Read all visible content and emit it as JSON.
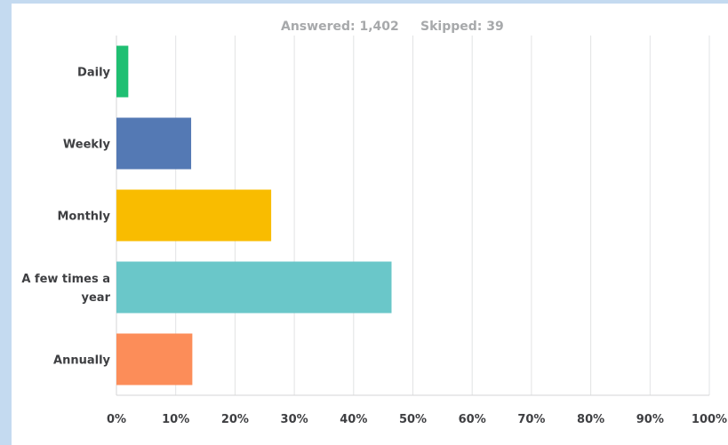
{
  "summary": {
    "answered_label": "Answered: 1,402",
    "skipped_label": "Skipped: 39"
  },
  "chart_data": {
    "type": "bar",
    "orientation": "horizontal",
    "categories": [
      "Daily",
      "Weekly",
      "Monthly",
      "A few times a year",
      "Annually"
    ],
    "category_label_lines": [
      [
        "Daily"
      ],
      [
        "Weekly"
      ],
      [
        "Monthly"
      ],
      [
        "A few times a",
        "year"
      ],
      [
        "Annually"
      ]
    ],
    "values": [
      2,
      12.6,
      26.1,
      46.4,
      12.8
    ],
    "colors": [
      "#1fbf72",
      "#5479b4",
      "#f9bc00",
      "#6ac7c9",
      "#fc8d59"
    ],
    "xlim": [
      0,
      100
    ],
    "x_ticks": [
      "0%",
      "10%",
      "20%",
      "30%",
      "40%",
      "50%",
      "60%",
      "70%",
      "80%",
      "90%",
      "100%"
    ],
    "grid": true,
    "title": "",
    "xlabel": "",
    "ylabel": ""
  }
}
